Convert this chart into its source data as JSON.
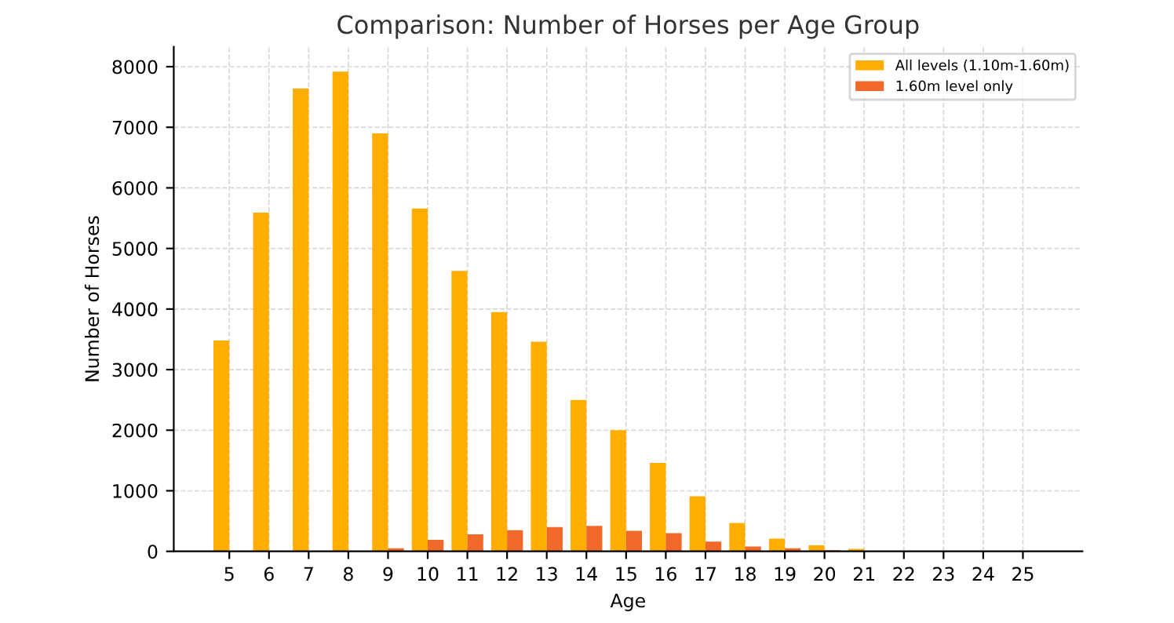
{
  "chart_data": {
    "type": "bar",
    "title": "Comparison: Number of Horses per Age Group",
    "xlabel": "Age",
    "ylabel": "Number of Horses",
    "x": [
      5,
      6,
      7,
      8,
      9,
      10,
      11,
      12,
      13,
      14,
      15,
      16,
      17,
      18,
      19,
      20,
      21,
      22,
      23,
      24,
      25
    ],
    "series": [
      {
        "name": "All levels (1.10m-1.60m)",
        "color": "#ffad00",
        "values": [
          3480,
          5590,
          7640,
          7920,
          6900,
          5660,
          4630,
          3950,
          3460,
          2500,
          2000,
          1460,
          910,
          470,
          210,
          100,
          40,
          0,
          0,
          0,
          0
        ]
      },
      {
        "name": "1.60m level only",
        "color": "#f0692a",
        "values": [
          0,
          0,
          0,
          0,
          50,
          190,
          280,
          350,
          400,
          420,
          340,
          300,
          160,
          80,
          50,
          20,
          0,
          0,
          0,
          0,
          0
        ]
      }
    ],
    "xlim": [
      3.6,
      26.5
    ],
    "xticks": [
      5,
      6,
      7,
      8,
      9,
      10,
      11,
      12,
      13,
      14,
      15,
      16,
      17,
      18,
      19,
      20,
      21,
      22,
      23,
      24,
      25
    ],
    "ylim": [
      0,
      8330
    ],
    "yticks": [
      0,
      1000,
      2000,
      3000,
      4000,
      5000,
      6000,
      7000,
      8000
    ],
    "grid": true,
    "legend": "top right"
  }
}
